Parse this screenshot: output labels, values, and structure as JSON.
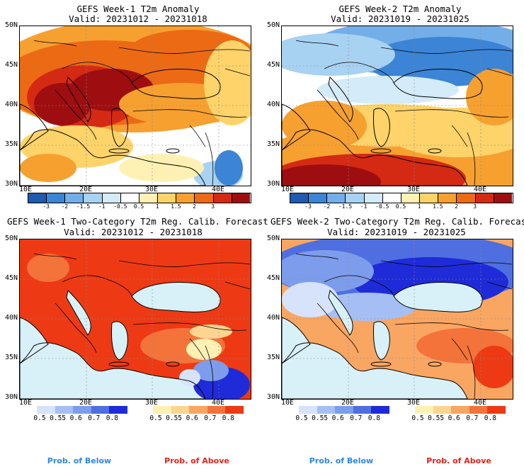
{
  "panels": [
    {
      "title": "GEFS Week-1 T2m Anomaly",
      "valid": "Valid: 20231012 - 20231018"
    },
    {
      "title": "GEFS Week-2 T2m Anomaly",
      "valid": "Valid: 20231019 - 20231025"
    },
    {
      "title": "GEFS Week-1 Two-Category T2m Reg. Calib. Forecast",
      "valid": "Valid: 20231012 - 20231018"
    },
    {
      "title": "GEFS Week-2 Two-Category T2m Reg. Calib. Forecast",
      "valid": "Valid: 20231019 - 20231025"
    }
  ],
  "axes": {
    "lat_labels": [
      "50N",
      "45N",
      "40N",
      "35N",
      "30N"
    ],
    "lon_labels": [
      "10E",
      "20E",
      "30E",
      "40E"
    ]
  },
  "anomaly_colorbar": {
    "labels": [
      "-3",
      "-2",
      "-1.5",
      "-1",
      "-0.5",
      "0.5",
      "1",
      "1.5",
      "2",
      "3"
    ],
    "colors": [
      "#1e5aae",
      "#3b84d6",
      "#74aee8",
      "#a8d2f2",
      "#d4ebf9",
      "#ffffff",
      "#fff1b3",
      "#fdd36a",
      "#f6a030",
      "#ec6a14",
      "#d42a14",
      "#9e0e10"
    ]
  },
  "prob_colorbar": {
    "below_labels": [
      "0.5",
      "0.55",
      "0.6",
      "0.7",
      "0.8"
    ],
    "below_colors": [
      "#d6e3fb",
      "#a5bff4",
      "#7d9cec",
      "#4f6fe0",
      "#1f2bd8"
    ],
    "above_labels": [
      "0.5",
      "0.55",
      "0.6",
      "0.7",
      "0.8"
    ],
    "above_colors": [
      "#fff1b3",
      "#fdd590",
      "#f9a662",
      "#f4733a",
      "#ee3a14"
    ],
    "below_caption": "Prob. of Below",
    "above_caption": "Prob. of Above"
  },
  "colors": {
    "water": "#d8f1f8",
    "below_caption": "#2e86e6",
    "above_caption": "#e2231a"
  }
}
